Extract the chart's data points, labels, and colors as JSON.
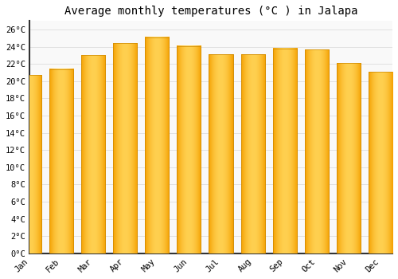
{
  "title": "Average monthly temperatures (°C ) in Jalapa",
  "months": [
    "Jan",
    "Feb",
    "Mar",
    "Apr",
    "May",
    "Jun",
    "Jul",
    "Aug",
    "Sep",
    "Oct",
    "Nov",
    "Dec"
  ],
  "temperatures": [
    20.7,
    21.4,
    23.0,
    24.4,
    25.1,
    24.1,
    23.1,
    23.1,
    23.8,
    23.7,
    22.1,
    21.1
  ],
  "bar_color_light": "#FFD050",
  "bar_color_dark": "#F5A000",
  "bar_edge_color": "#CC8800",
  "background_color": "#ffffff",
  "plot_bg_color": "#f9f9f9",
  "ylim": [
    0,
    27
  ],
  "yticks": [
    0,
    2,
    4,
    6,
    8,
    10,
    12,
    14,
    16,
    18,
    20,
    22,
    24,
    26
  ],
  "ytick_labels": [
    "0°C",
    "2°C",
    "4°C",
    "6°C",
    "8°C",
    "10°C",
    "12°C",
    "14°C",
    "16°C",
    "18°C",
    "20°C",
    "22°C",
    "24°C",
    "26°C"
  ],
  "grid_color": "#dddddd",
  "title_fontsize": 10,
  "tick_fontsize": 7.5,
  "bar_width": 0.75
}
